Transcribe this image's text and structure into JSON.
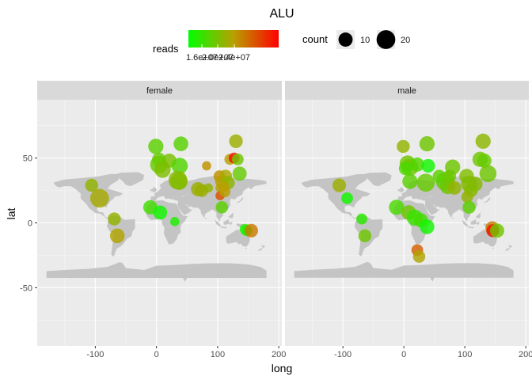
{
  "chart_data": {
    "type": "scatter",
    "title": "ALU",
    "xlabel": "long",
    "ylabel": "lat",
    "xlim": [
      -195,
      205
    ],
    "ylim": [
      -95,
      95
    ],
    "x_ticks": [
      -100,
      0,
      100,
      200
    ],
    "y_ticks": [
      -50,
      0,
      50
    ],
    "grid": true,
    "legend_position": "top",
    "legend": {
      "color": {
        "title": "reads",
        "ticks": [
          "1.6e+07",
          "2.0e+07",
          "2.4e+07"
        ],
        "low_color": "#00ff00",
        "high_color": "#ff0000",
        "mid_color": "#b8a000"
      },
      "size": {
        "title": "count",
        "entries": [
          10,
          20
        ]
      }
    },
    "facets": [
      {
        "name": "female",
        "points": [
          {
            "long": -106,
            "lat": 29,
            "count": 8,
            "reads": 0.4
          },
          {
            "long": -93,
            "lat": 19,
            "count": 20,
            "reads": 0.45
          },
          {
            "long": -69,
            "lat": 3,
            "count": 8,
            "reads": 0.4
          },
          {
            "long": -64,
            "lat": -10,
            "count": 11,
            "reads": 0.48
          },
          {
            "long": -1,
            "lat": 59,
            "count": 12,
            "reads": 0.25
          },
          {
            "long": 4,
            "lat": 49,
            "count": 9,
            "reads": 0.28
          },
          {
            "long": 4,
            "lat": 45,
            "count": 17,
            "reads": 0.28
          },
          {
            "long": 10,
            "lat": 41,
            "count": 14,
            "reads": 0.34
          },
          {
            "long": 21,
            "lat": 48,
            "count": 10,
            "reads": 0.33
          },
          {
            "long": 40,
            "lat": 61,
            "count": 11,
            "reads": 0.24
          },
          {
            "long": 38,
            "lat": 44,
            "count": 14,
            "reads": 0.22
          },
          {
            "long": 37,
            "lat": 32,
            "count": 16,
            "reads": 0.36
          },
          {
            "long": 35,
            "lat": 33,
            "count": 20,
            "reads": 0.36
          },
          {
            "long": -10,
            "lat": 12,
            "count": 10,
            "reads": 0.18
          },
          {
            "long": 6,
            "lat": 8,
            "count": 10,
            "reads": 0.05
          },
          {
            "long": 30,
            "lat": 1,
            "count": 3,
            "reads": 0.08
          },
          {
            "long": 68,
            "lat": 26,
            "count": 10,
            "reads": 0.42
          },
          {
            "long": 74,
            "lat": 25,
            "count": 8,
            "reads": 0.42
          },
          {
            "long": 82,
            "lat": 44,
            "count": 3,
            "reads": 0.55
          },
          {
            "long": 85,
            "lat": 27,
            "count": 3,
            "reads": 0.4
          },
          {
            "long": 103,
            "lat": 36,
            "count": 6,
            "reads": 0.55
          },
          {
            "long": 104,
            "lat": 27,
            "count": 3,
            "reads": 0.5
          },
          {
            "long": 104,
            "lat": 21,
            "count": 3,
            "reads": 0.75
          },
          {
            "long": 113,
            "lat": 36,
            "count": 8,
            "reads": 0.46
          },
          {
            "long": 106,
            "lat": 32,
            "count": 7,
            "reads": 0.5
          },
          {
            "long": 117,
            "lat": 31,
            "count": 9,
            "reads": 0.38
          },
          {
            "long": 110,
            "lat": 28,
            "count": 5,
            "reads": 0.5
          },
          {
            "long": 112,
            "lat": 24,
            "count": 5,
            "reads": 0.5
          },
          {
            "long": 120,
            "lat": 49,
            "count": 5,
            "reads": 0.5
          },
          {
            "long": 127,
            "lat": 50,
            "count": 5,
            "reads": 0.95
          },
          {
            "long": 133,
            "lat": 49,
            "count": 6,
            "reads": 0.3
          },
          {
            "long": 130,
            "lat": 63,
            "count": 9,
            "reads": 0.42
          },
          {
            "long": 136,
            "lat": 38,
            "count": 10,
            "reads": 0.28
          },
          {
            "long": 107,
            "lat": 12,
            "count": 7,
            "reads": 0.25
          },
          {
            "long": 145,
            "lat": -5,
            "count": 5,
            "reads": 0.1
          },
          {
            "long": 148,
            "lat": -6,
            "count": 5,
            "reads": 0.05
          },
          {
            "long": 155,
            "lat": -6,
            "count": 9,
            "reads": 0.62
          }
        ]
      },
      {
        "name": "male",
        "points": [
          {
            "long": -106,
            "lat": 29,
            "count": 9,
            "reads": 0.42
          },
          {
            "long": -93,
            "lat": 19,
            "count": 6,
            "reads": 0.05
          },
          {
            "long": -69,
            "lat": 3,
            "count": 5,
            "reads": 0.12
          },
          {
            "long": -64,
            "lat": -10,
            "count": 8,
            "reads": 0.3
          },
          {
            "long": -1,
            "lat": 59,
            "count": 8,
            "reads": 0.4
          },
          {
            "long": 6,
            "lat": 46,
            "count": 13,
            "reads": 0.3
          },
          {
            "long": 10,
            "lat": 43,
            "count": 16,
            "reads": 0.3
          },
          {
            "long": 3,
            "lat": 42,
            "count": 9,
            "reads": 0.2
          },
          {
            "long": 22,
            "lat": 45,
            "count": 10,
            "reads": 0.22
          },
          {
            "long": 38,
            "lat": 61,
            "count": 12,
            "reads": 0.3
          },
          {
            "long": 40,
            "lat": 44,
            "count": 9,
            "reads": 0.05
          },
          {
            "long": 10,
            "lat": 32,
            "count": 12,
            "reads": 0.25
          },
          {
            "long": 36,
            "lat": 31,
            "count": 18,
            "reads": 0.28
          },
          {
            "long": 68,
            "lat": 32,
            "count": 20,
            "reads": 0.24
          },
          {
            "long": 80,
            "lat": 43,
            "count": 12,
            "reads": 0.3
          },
          {
            "long": 58,
            "lat": 36,
            "count": 8,
            "reads": 0.25
          },
          {
            "long": 75,
            "lat": 36,
            "count": 8,
            "reads": 0.3
          },
          {
            "long": 72,
            "lat": 28,
            "count": 12,
            "reads": 0.3
          },
          {
            "long": 83,
            "lat": 27,
            "count": 9,
            "reads": 0.4
          },
          {
            "long": 103,
            "lat": 36,
            "count": 11,
            "reads": 0.35
          },
          {
            "long": 107,
            "lat": 30,
            "count": 14,
            "reads": 0.35
          },
          {
            "long": 117,
            "lat": 30,
            "count": 11,
            "reads": 0.36
          },
          {
            "long": 110,
            "lat": 25,
            "count": 9,
            "reads": 0.36
          },
          {
            "long": 104,
            "lat": 20,
            "count": 6,
            "reads": 0.4
          },
          {
            "long": 125,
            "lat": 49,
            "count": 12,
            "reads": 0.3
          },
          {
            "long": 130,
            "lat": 63,
            "count": 12,
            "reads": 0.38
          },
          {
            "long": 132,
            "lat": 48,
            "count": 10,
            "reads": 0.28
          },
          {
            "long": 138,
            "lat": 38,
            "count": 16,
            "reads": 0.3
          },
          {
            "long": -12,
            "lat": 12,
            "count": 12,
            "reads": 0.2
          },
          {
            "long": 8,
            "lat": 8,
            "count": 11,
            "reads": 0.3
          },
          {
            "long": 18,
            "lat": 4,
            "count": 14,
            "reads": 0.15
          },
          {
            "long": 28,
            "lat": 2,
            "count": 10,
            "reads": 0.18
          },
          {
            "long": 38,
            "lat": -3,
            "count": 11,
            "reads": 0.05
          },
          {
            "long": 22,
            "lat": -21,
            "count": 6,
            "reads": 0.7
          },
          {
            "long": 25,
            "lat": -26,
            "count": 7,
            "reads": 0.48
          },
          {
            "long": 107,
            "lat": 12,
            "count": 8,
            "reads": 0.25
          },
          {
            "long": 145,
            "lat": -4,
            "count": 9,
            "reads": 0.6
          },
          {
            "long": 146,
            "lat": -6,
            "count": 8,
            "reads": 0.95
          },
          {
            "long": 153,
            "lat": -6,
            "count": 10,
            "reads": 0.3
          }
        ]
      }
    ]
  }
}
